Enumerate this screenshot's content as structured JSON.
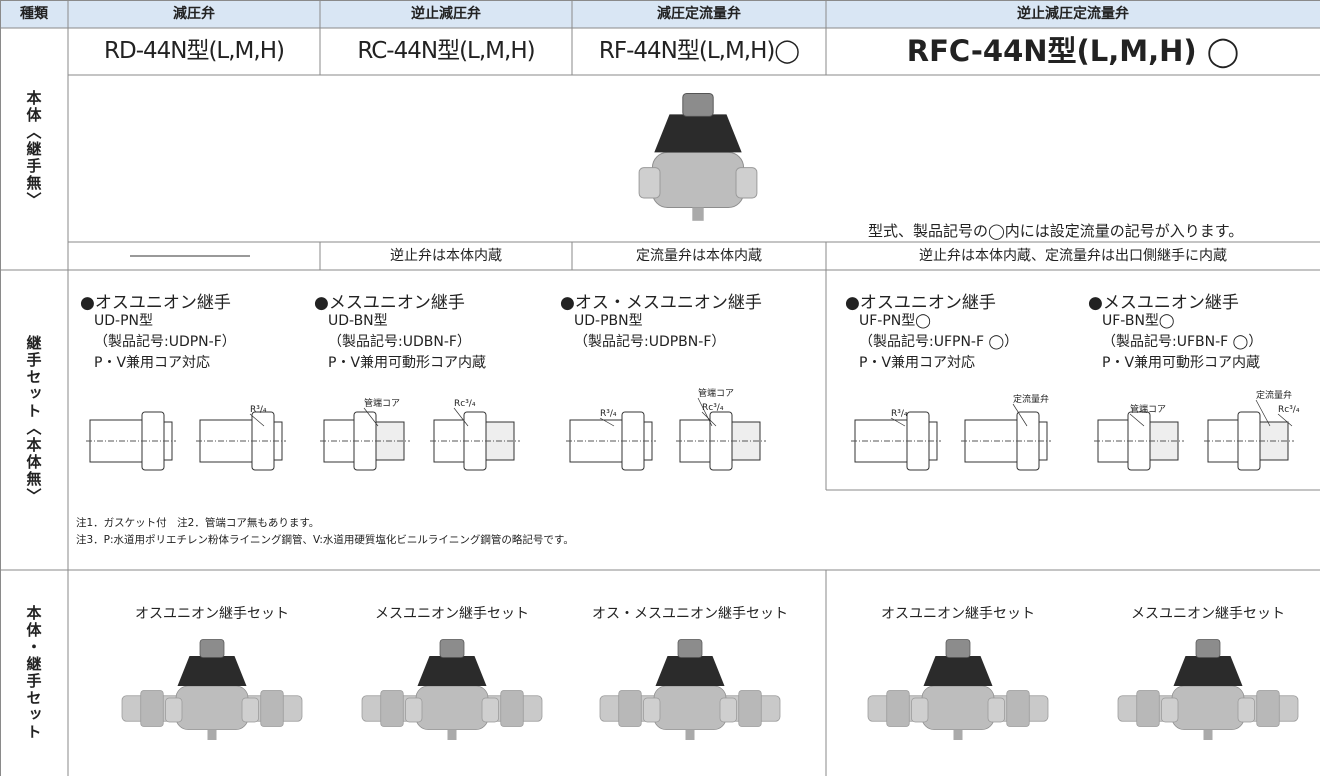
{
  "header": {
    "columns": [
      "種類",
      "減圧弁",
      "逆止減圧弁",
      "減圧定流量弁",
      "逆止減圧定流量弁"
    ]
  },
  "body": {
    "label": "本体〈継手無〉",
    "models": [
      "RD-44N型(L,M,H)",
      "RC-44N型(L,M,H)",
      "RF-44N型(L,M,H)◯",
      "RFC-44N型(L,M,H) ◯"
    ],
    "image_note": "型式、製品記号の◯内には設定流量の記号が入ります。",
    "features": [
      "逆止弁は本体内蔵",
      "定流量弁は本体内蔵",
      "逆止弁は本体内蔵、定流量弁は出口側継手に内蔵"
    ]
  },
  "joints": {
    "label": "継手セット〈本体無〉",
    "items": [
      {
        "title": "●オスユニオン継手",
        "lines": [
          "UD-PN型",
          "（製品記号:UDPN-F）",
          "P・V兼用コア対応"
        ],
        "diagram_labels": [
          "R³/₄"
        ]
      },
      {
        "title": "●メスユニオン継手",
        "lines": [
          "UD-BN型",
          "（製品記号:UDBN-F）",
          "P・V兼用可動形コア内蔵"
        ],
        "diagram_labels": [
          "管端コア",
          "Rc³/₄"
        ]
      },
      {
        "title": "●オス・メスユニオン継手",
        "lines": [
          "UD-PBN型",
          "（製品記号:UDPBN-F）"
        ],
        "diagram_labels": [
          "R³/₄",
          "管端コア",
          "Rc³/₄"
        ]
      },
      {
        "title": "●オスユニオン継手",
        "lines": [
          "UF-PN型◯",
          "（製品記号:UFPN-F ◯）",
          "P・V兼用コア対応"
        ],
        "diagram_labels": [
          "R³/₄",
          "定流量弁"
        ]
      },
      {
        "title": "●メスユニオン継手",
        "lines": [
          "UF-BN型◯",
          "（製品記号:UFBN-F ◯）",
          "P・V兼用可動形コア内蔵"
        ],
        "diagram_labels": [
          "管端コア",
          "定流量弁",
          "Rc³/₄"
        ]
      }
    ],
    "notes": [
      "注1．ガスケット付　注2．管端コア無もあります。",
      "注3．P:水道用ポリエチレン粉体ライニング鋼管、V:水道用硬質塩化ビニルライニング鋼管の略記号です。"
    ]
  },
  "sets": {
    "label": "本体・継手セット",
    "items": [
      "オスユニオン継手セット",
      "メスユニオン継手セット",
      "オス・メスユニオン継手セット",
      "オスユニオン継手セット",
      "メスユニオン継手セット"
    ]
  }
}
